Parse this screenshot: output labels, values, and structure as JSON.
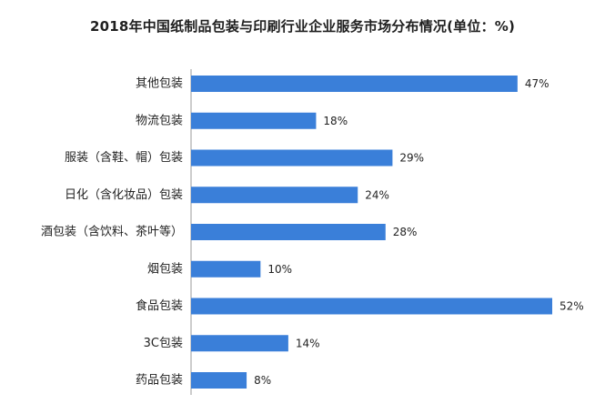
{
  "chart_data": {
    "type": "bar",
    "orientation": "horizontal",
    "title": "2018年中国纸制品包装与印刷行业企业服务市场分布情况(单位：%)",
    "categories": [
      "其他包装",
      "物流包装",
      "服装（含鞋、帽）包装",
      "日化（含化妆品）包装",
      "酒包装（含饮料、茶叶等）",
      "烟包装",
      "食品包装",
      "3C包装",
      "药品包装"
    ],
    "values": [
      47,
      18,
      29,
      24,
      28,
      10,
      52,
      14,
      8
    ],
    "value_labels": [
      "47%",
      "18%",
      "29%",
      "24%",
      "28%",
      "10%",
      "52%",
      "14%",
      "8%"
    ],
    "xlim": [
      0,
      52
    ],
    "bar_color": "#3a7fd9",
    "grid": false,
    "legend": "none"
  }
}
